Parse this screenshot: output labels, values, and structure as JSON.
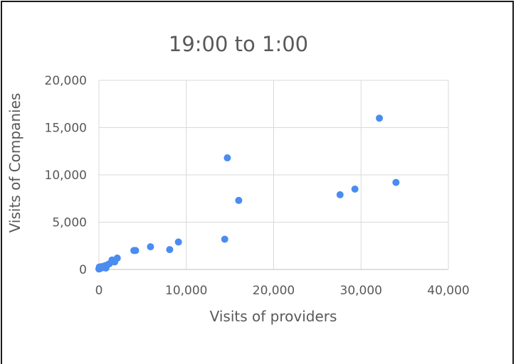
{
  "chart_data": {
    "type": "scatter",
    "title": "19:00 to 1:00",
    "xlabel": "Visits of providers",
    "ylabel": "Visits of Companies",
    "xlim": [
      0,
      40000
    ],
    "ylim": [
      0,
      20000
    ],
    "x_ticks": [
      0,
      10000,
      20000,
      30000,
      40000
    ],
    "y_ticks": [
      0,
      5000,
      10000,
      15000,
      20000
    ],
    "x_tick_labels": [
      "0",
      "10,000",
      "20,000",
      "30,000",
      "40,000"
    ],
    "y_tick_labels": [
      "0",
      "5,000",
      "10,000",
      "15,000",
      "20,000"
    ],
    "grid": true,
    "legend": "none",
    "marker_color": "#4a8cf0",
    "points": [
      {
        "x": 0,
        "y": 50
      },
      {
        "x": 50,
        "y": 250
      },
      {
        "x": 150,
        "y": 100
      },
      {
        "x": 300,
        "y": 300
      },
      {
        "x": 500,
        "y": 200
      },
      {
        "x": 700,
        "y": 400
      },
      {
        "x": 800,
        "y": 150
      },
      {
        "x": 1000,
        "y": 500
      },
      {
        "x": 1200,
        "y": 600
      },
      {
        "x": 1500,
        "y": 1000
      },
      {
        "x": 1800,
        "y": 800
      },
      {
        "x": 2100,
        "y": 1200
      },
      {
        "x": 4000,
        "y": 2000
      },
      {
        "x": 4200,
        "y": 2000
      },
      {
        "x": 5900,
        "y": 2400
      },
      {
        "x": 8100,
        "y": 2100
      },
      {
        "x": 9100,
        "y": 2900
      },
      {
        "x": 14400,
        "y": 3200
      },
      {
        "x": 14700,
        "y": 11800
      },
      {
        "x": 16000,
        "y": 7300
      },
      {
        "x": 27600,
        "y": 7900
      },
      {
        "x": 29300,
        "y": 8500
      },
      {
        "x": 32100,
        "y": 16000
      },
      {
        "x": 34000,
        "y": 9200
      }
    ]
  }
}
